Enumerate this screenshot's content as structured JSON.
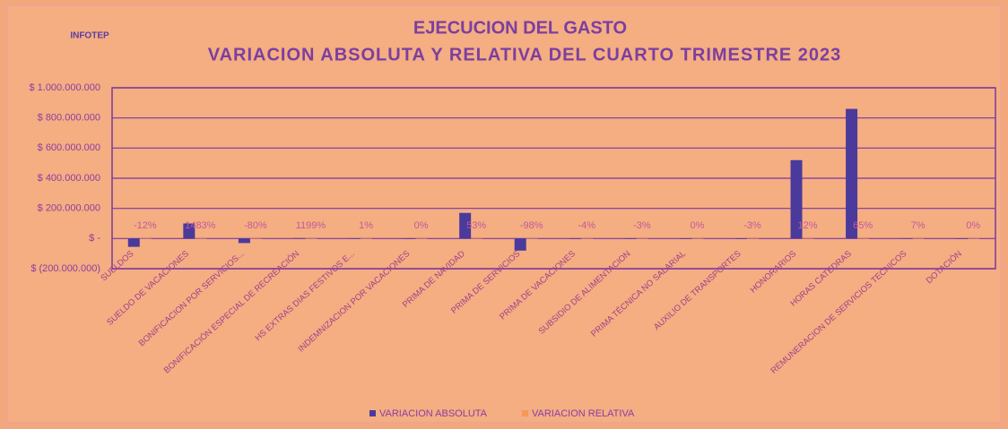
{
  "chart_data": {
    "type": "bar",
    "logo": "INFOTEP",
    "title": "EJECUCION DEL GASTO",
    "subtitle": "VARIACION ABSOLUTA Y RELATIVA DEL CUARTO TRIMESTRE 2023",
    "categories": [
      "SUELDOS",
      "SUELDO DE VACACIONES",
      "BONIFICACION POR SERVICIOS...",
      "BONIFICACIÓN ESPECIAL DE RECREACIÓN",
      "HS EXTRAS DIAS FESTIVOS E...",
      "INDEMNIZACION POR VACACIONES",
      "PRIMA DE NAVIDAD",
      "PRIMA DE SERVICIOS",
      "PRIMA DE VACACIONES",
      "SUBSIDIO DE ALIMENTACION",
      "PRIMA TÉCNICA NO SALARIAL",
      "AUXILIO DE TRANSPORTES",
      "HONORARIOS",
      "HORAS CATEDRAS",
      "REMUNERACION DE SERVICIOS TECNICOS",
      "DOTACIÓN"
    ],
    "series": [
      {
        "name": "VARIACION ABSOLUTA",
        "color": "#4a3a9c",
        "values": [
          -55000000,
          100000000,
          -30000000,
          3000000,
          1000000,
          0,
          170000000,
          -80000000,
          -2000000,
          -1000000,
          0,
          -1000000,
          520000000,
          860000000,
          1000000,
          0
        ]
      },
      {
        "name": "VARIACION RELATIVA",
        "color": "#f39a5a",
        "values": [
          -12,
          1483,
          -80,
          1199,
          1,
          0,
          53,
          -98,
          -4,
          -3,
          0,
          -3,
          12,
          65,
          7,
          0
        ],
        "value_labels": [
          "-12%",
          "1483%",
          "-80%",
          "1199%",
          "1%",
          "0%",
          "53%",
          "-98%",
          "-4%",
          "-3%",
          "0%",
          "-3%",
          "12%",
          "65%",
          "7%",
          "0%"
        ]
      }
    ],
    "ylim": [
      -200000000,
      1000000000
    ],
    "yticks": [
      {
        "value": -200000000,
        "label": "$ (200.000.000)"
      },
      {
        "value": 0,
        "label": "$ -"
      },
      {
        "value": 200000000,
        "label": "$ 200.000.000"
      },
      {
        "value": 400000000,
        "label": "$ 400.000.000"
      },
      {
        "value": 600000000,
        "label": "$ 600.000.000"
      },
      {
        "value": 800000000,
        "label": "$ 800.000.000"
      },
      {
        "value": 1000000000,
        "label": "$ 1.000.000.000"
      }
    ],
    "grid": true
  }
}
